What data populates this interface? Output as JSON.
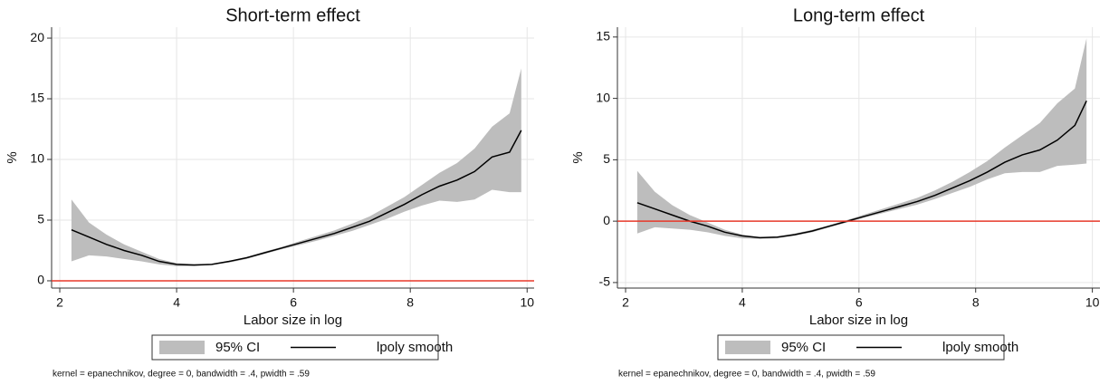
{
  "chart_data": [
    {
      "type": "line",
      "title": "Short-term effect",
      "xlabel": "Labor size in log",
      "ylabel": "%",
      "x": [
        2.2,
        2.5,
        2.8,
        3.1,
        3.4,
        3.7,
        4.0,
        4.3,
        4.6,
        4.9,
        5.2,
        5.5,
        5.8,
        6.1,
        6.4,
        6.7,
        7.0,
        7.3,
        7.6,
        7.9,
        8.2,
        8.5,
        8.8,
        9.1,
        9.4,
        9.7,
        9.9
      ],
      "series": [
        {
          "name": "95% CI",
          "color": "#bdbdbd",
          "upper": [
            6.7,
            4.8,
            3.8,
            3.0,
            2.4,
            1.8,
            1.45,
            1.35,
            1.4,
            1.65,
            1.95,
            2.4,
            2.8,
            3.25,
            3.7,
            4.15,
            4.7,
            5.3,
            6.1,
            6.9,
            7.9,
            8.9,
            9.7,
            10.9,
            12.7,
            13.8,
            17.5
          ],
          "lower": [
            1.6,
            2.1,
            2.0,
            1.8,
            1.6,
            1.35,
            1.2,
            1.2,
            1.3,
            1.5,
            1.8,
            2.2,
            2.6,
            2.95,
            3.3,
            3.7,
            4.1,
            4.6,
            5.1,
            5.7,
            6.2,
            6.6,
            6.5,
            6.7,
            7.5,
            7.3,
            7.3
          ]
        },
        {
          "name": "lpoly smooth",
          "color": "#000000",
          "values": [
            4.2,
            3.6,
            3.0,
            2.5,
            2.1,
            1.6,
            1.35,
            1.3,
            1.35,
            1.6,
            1.9,
            2.3,
            2.7,
            3.1,
            3.5,
            3.9,
            4.4,
            4.9,
            5.6,
            6.3,
            7.1,
            7.8,
            8.3,
            9.0,
            10.2,
            10.6,
            12.4
          ]
        }
      ],
      "hline": {
        "value": 0,
        "color": "#e8392a"
      },
      "xlim": [
        1.86,
        10.12
      ],
      "xticks": [
        2,
        4,
        6,
        8,
        10
      ],
      "ylim": [
        -0.6,
        20.9
      ],
      "yticks": [
        0,
        5,
        10,
        15,
        20
      ],
      "grid": true,
      "note": "kernel = epanechnikov, degree = 0, bandwidth = .4, pwidth = .59"
    },
    {
      "type": "line",
      "title": "Long-term effect",
      "xlabel": "Labor size in log",
      "ylabel": "%",
      "x": [
        2.2,
        2.5,
        2.8,
        3.1,
        3.4,
        3.7,
        4.0,
        4.3,
        4.6,
        4.9,
        5.2,
        5.5,
        5.8,
        6.1,
        6.4,
        6.7,
        7.0,
        7.3,
        7.6,
        7.9,
        8.2,
        8.5,
        8.8,
        9.1,
        9.4,
        9.7,
        9.9
      ],
      "series": [
        {
          "name": "95% CI",
          "color": "#bdbdbd",
          "upper": [
            4.1,
            2.4,
            1.3,
            0.5,
            -0.1,
            -0.7,
            -1.1,
            -1.3,
            -1.25,
            -1.0,
            -0.7,
            -0.3,
            0.1,
            0.55,
            1.0,
            1.45,
            1.9,
            2.5,
            3.2,
            4.0,
            4.9,
            6.0,
            7.0,
            8.0,
            9.6,
            10.8,
            14.9
          ],
          "lower": [
            -1.0,
            -0.5,
            -0.6,
            -0.7,
            -0.9,
            -1.2,
            -1.4,
            -1.45,
            -1.4,
            -1.2,
            -0.9,
            -0.5,
            -0.1,
            0.3,
            0.65,
            1.0,
            1.35,
            1.8,
            2.3,
            2.8,
            3.4,
            3.9,
            4.0,
            4.0,
            4.5,
            4.6,
            4.7
          ]
        },
        {
          "name": "lpoly smooth",
          "color": "#000000",
          "values": [
            1.5,
            1.0,
            0.5,
            0.0,
            -0.4,
            -0.9,
            -1.2,
            -1.35,
            -1.3,
            -1.1,
            -0.8,
            -0.4,
            0.0,
            0.4,
            0.8,
            1.2,
            1.6,
            2.1,
            2.7,
            3.3,
            4.0,
            4.8,
            5.4,
            5.8,
            6.6,
            7.8,
            9.8
          ]
        }
      ],
      "hline": {
        "value": 0,
        "color": "#e8392a"
      },
      "xlim": [
        1.86,
        10.13
      ],
      "xticks": [
        2,
        4,
        6,
        8,
        10
      ],
      "ylim": [
        -5.45,
        15.8
      ],
      "yticks": [
        -5,
        0,
        5,
        10,
        15
      ],
      "grid": true,
      "note": "kernel = epanechnikov, degree = 0, bandwidth = .4, pwidth = .59"
    }
  ]
}
